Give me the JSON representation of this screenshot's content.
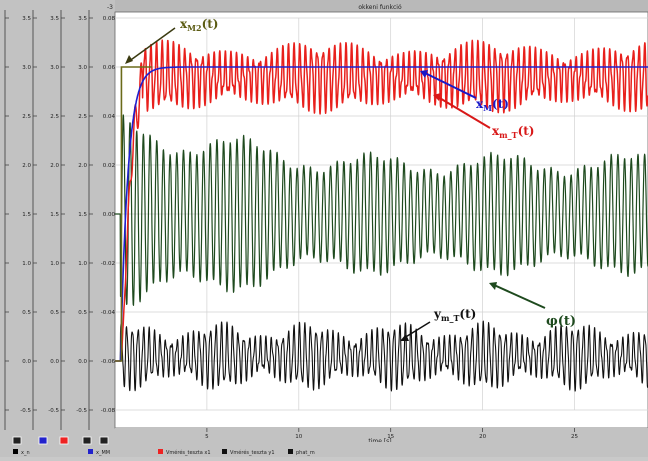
{
  "window": {
    "title": "okkeni funkció"
  },
  "axes": [
    {
      "name": "axis-1",
      "ticks": [
        "3.5",
        "3.0",
        "2.5",
        "2.0",
        "1.5",
        "1.0",
        "0.5",
        "0.0",
        "-0.5"
      ]
    },
    {
      "name": "axis-2",
      "ticks": [
        "3.5",
        "3.0",
        "2.5",
        "2.0",
        "1.5",
        "1.0",
        "0.5",
        "0.0",
        "-0.5"
      ]
    },
    {
      "name": "axis-3",
      "ticks": [
        "3.5",
        "3.0",
        "2.5",
        "2.0",
        "1.5",
        "1.0",
        "0.5",
        "0.0",
        "-0.5"
      ]
    },
    {
      "name": "axis-4",
      "exponent": "-3",
      "ticks": [
        "0.08",
        "0.06",
        "0.04",
        "0.02",
        "0.00",
        "-0.02",
        "-0.04",
        "-0.06",
        "-0.08"
      ]
    }
  ],
  "xaxis": {
    "ticks": [
      "5",
      "10",
      "15",
      "20",
      "25"
    ],
    "label": "time [s]"
  },
  "annotations": {
    "xm2": "x",
    "xm2_sub": "M2",
    "xm2_tail": "(t)",
    "xm": "x",
    "xm_sub": "M",
    "xm_tail": "(t)",
    "xmt": "x",
    "xmt_sub": "m_T",
    "xmt_tail": "(t)",
    "ymt": "y",
    "ymt_sub": "m_T",
    "ymt_tail": "(t)",
    "phi": "φ(t)"
  },
  "legend": [
    {
      "color": "#000000",
      "label": "x_n"
    },
    {
      "color": "#2222cc",
      "label": "x_MM"
    },
    {
      "color": "#ee2222",
      "label": "Vmérés_teszta x1"
    },
    {
      "color": "#111111",
      "label": "Vmérés_teszta y1"
    },
    {
      "color": "#111111",
      "label": "phat_m"
    }
  ],
  "colors": {
    "red": "#e8201c",
    "green": "#1e4a1e",
    "black": "#111111",
    "blue": "#1f1fd0",
    "olive": "#6b6b1a"
  },
  "chart_data": {
    "type": "line",
    "title": "okkeni funkció",
    "xlabel": "time [s]",
    "xlim": [
      0,
      29
    ],
    "ylim": [
      -0.5,
      3.5
    ],
    "series": [
      {
        "name": "xM2(t)",
        "kind": "step",
        "start": 0.05,
        "level": 3.0
      },
      {
        "name": "xM(t)",
        "kind": "first-order",
        "tau": 0.4,
        "level": 3.0
      },
      {
        "name": "xm_T(t)",
        "kind": "oscillation",
        "center": 2.9,
        "amplitude": 0.3
      },
      {
        "name": "φ(t)",
        "kind": "decaying-oscillation",
        "center": 1.5,
        "amplitude_start": 1.0,
        "amplitude_end": 0.6
      },
      {
        "name": "ym_T(t)",
        "kind": "oscillation",
        "center": 0.05,
        "amplitude": 0.3
      }
    ]
  }
}
